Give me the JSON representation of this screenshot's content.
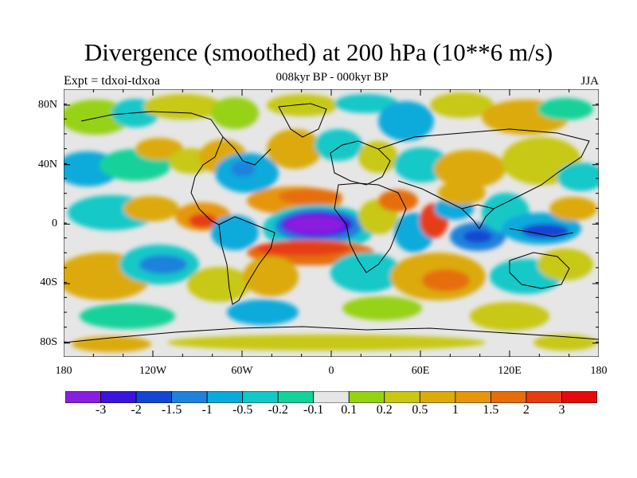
{
  "title": "Divergence (smoothed) at 200 hPa (10**6 m/s)",
  "subtitle": "008kyr BP - 000kyr BP",
  "left_label": "Expt = tdxoi-tdxoa",
  "right_label": "JJA",
  "lat_ticks": [
    "80N",
    "40N",
    "0",
    "40S",
    "80S"
  ],
  "lon_ticks": [
    "180",
    "120W",
    "60W",
    "0",
    "60E",
    "120E",
    "180"
  ],
  "colorbar": {
    "colors": [
      "#8a1ee0",
      "#3a14dc",
      "#1446d2",
      "#1e82dc",
      "#0aaadc",
      "#14c8c8",
      "#14d29a",
      "#e6e6e6",
      "#96d214",
      "#c8c814",
      "#dcaa0a",
      "#e6960a",
      "#e66e0a",
      "#e63c14",
      "#e60a0a"
    ],
    "labels": [
      "-3",
      "-2",
      "-1.5",
      "-1",
      "-0.5",
      "-0.2",
      "-0.1",
      "0.1",
      "0.2",
      "0.5",
      "1",
      "1.5",
      "2",
      "3"
    ]
  }
}
